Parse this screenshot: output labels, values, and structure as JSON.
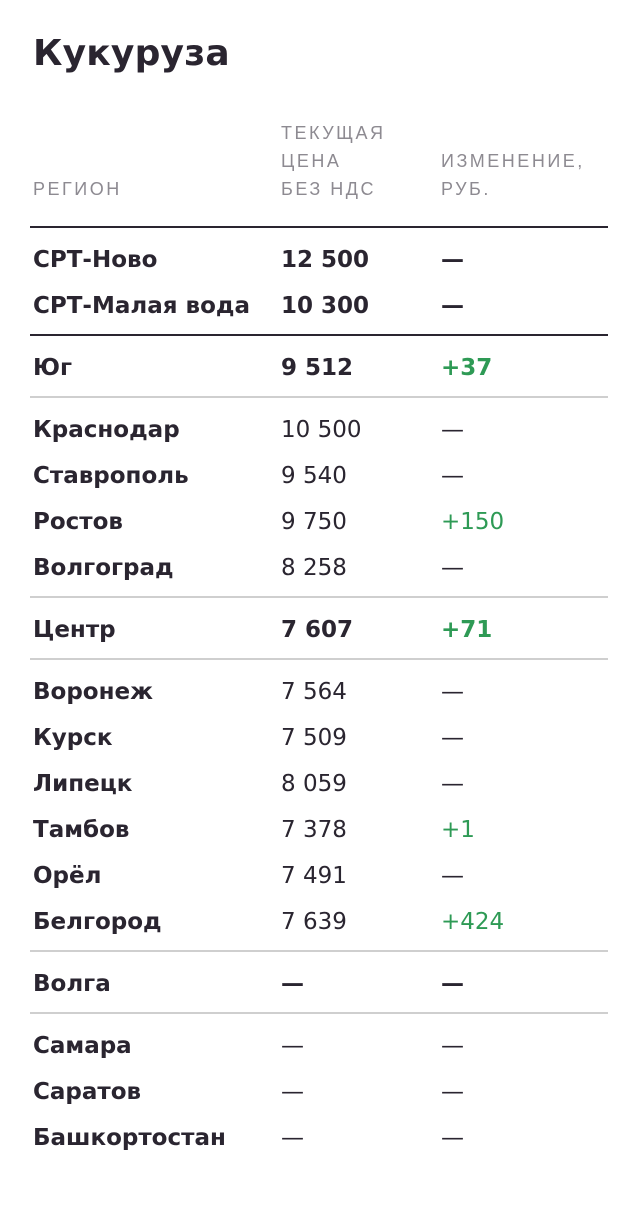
{
  "title": "Кукуруза",
  "colors": {
    "positive": "#2e9a55",
    "text": "#2a2530",
    "header": "#8d8a91",
    "rule_light": "#cfcfcf"
  },
  "table": {
    "headers": {
      "region": "РЕГИОН",
      "price": "ТЕКУЩАЯ\nЦЕНА\nБЕЗ НДС",
      "change": "ИЗМЕНЕНИЕ,\nРУБ."
    },
    "rows": [
      {
        "name": "СРТ-Ново",
        "price": "12 500",
        "change": "—"
      },
      {
        "name": "СРТ-Малая вода",
        "price": "10 300",
        "change": "—"
      },
      {
        "name": "Юг",
        "price": "9 512",
        "change": "+37"
      },
      {
        "name": "Краснодар",
        "price": "10 500",
        "change": "—"
      },
      {
        "name": "Ставрополь",
        "price": "9 540",
        "change": "—"
      },
      {
        "name": "Ростов",
        "price": "9 750",
        "change": "+150"
      },
      {
        "name": "Волгоград",
        "price": "8 258",
        "change": "—"
      },
      {
        "name": "Центр",
        "price": "7 607",
        "change": "+71"
      },
      {
        "name": "Воронеж",
        "price": "7 564",
        "change": "—"
      },
      {
        "name": "Курск",
        "price": "7 509",
        "change": "—"
      },
      {
        "name": "Липецк",
        "price": "8 059",
        "change": "—"
      },
      {
        "name": "Тамбов",
        "price": "7 378",
        "change": "+1"
      },
      {
        "name": "Орёл",
        "price": "7 491",
        "change": "—"
      },
      {
        "name": "Белгород",
        "price": "7 639",
        "change": "+424"
      },
      {
        "name": "Волга",
        "price": "—",
        "change": "—"
      },
      {
        "name": "Самара",
        "price": "—",
        "change": "—"
      },
      {
        "name": "Саратов",
        "price": "—",
        "change": "—"
      },
      {
        "name": "Башкортостан",
        "price": "—",
        "change": "—"
      }
    ]
  }
}
